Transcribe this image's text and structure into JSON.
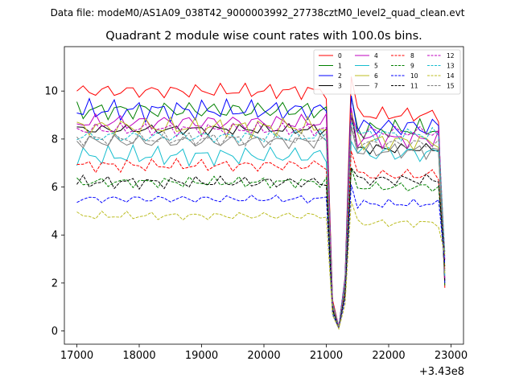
{
  "chart_data": {
    "type": "line",
    "suptitle": "Data file: modeM0/AS1A09_038T42_9000003992_27738cztM0_level2_quad_clean.evt",
    "title": "Quadrant 2 module wise count rates with 100.0s bins.",
    "xlabel": "",
    "ylabel": "",
    "x_offset_label": "+3.43e8",
    "xlim": [
      16800,
      23200
    ],
    "ylim": [
      -0.55,
      11.85
    ],
    "x_ticks": [
      17000,
      18000,
      19000,
      20000,
      21000,
      22000,
      23000
    ],
    "y_ticks": [
      0,
      2,
      4,
      6,
      8,
      10
    ],
    "legend_position": "top-right",
    "x": [
      17000,
      17100,
      17200,
      17300,
      17400,
      17500,
      17600,
      17700,
      17800,
      17900,
      18000,
      18100,
      18200,
      18300,
      18400,
      18500,
      18600,
      18700,
      18800,
      18900,
      19000,
      19100,
      19200,
      19300,
      19400,
      19500,
      19600,
      19700,
      19800,
      19900,
      20000,
      20100,
      20200,
      20300,
      20400,
      20500,
      20600,
      20700,
      20800,
      20900,
      21000,
      21100,
      21200,
      21300,
      21400,
      21500,
      21600,
      21700,
      21800,
      21900,
      22000,
      22100,
      22200,
      22300,
      22400,
      22500,
      22600,
      22700,
      22800,
      22900
    ],
    "dip": [
      1,
      1,
      1,
      1,
      1,
      1,
      1,
      1,
      1,
      1,
      1,
      1,
      1,
      1,
      1,
      1,
      1,
      1,
      1,
      1,
      1,
      1,
      1,
      1,
      1,
      1,
      1,
      1,
      1,
      1,
      1,
      1,
      1,
      1,
      1,
      1,
      1,
      1,
      1,
      1,
      1,
      0.14,
      0.02,
      0.25,
      1.05,
      1,
      1,
      1,
      1,
      1,
      1,
      1,
      1,
      1,
      1,
      1,
      1,
      1,
      1,
      0.22
    ],
    "series": [
      {
        "name": "0",
        "color": "#ff0000",
        "dash": "solid",
        "base": 10.0,
        "amp": 0.35,
        "post": 9.0
      },
      {
        "name": "1",
        "color": "#008000",
        "dash": "solid",
        "base": 9.2,
        "amp": 0.45,
        "post": 8.4
      },
      {
        "name": "2",
        "color": "#0000ff",
        "dash": "solid",
        "base": 9.2,
        "amp": 0.5,
        "post": 8.5
      },
      {
        "name": "3",
        "color": "#000000",
        "dash": "solid",
        "base": 8.4,
        "amp": 0.25,
        "post": 7.6
      },
      {
        "name": "4",
        "color": "#bf00bf",
        "dash": "solid",
        "base": 8.7,
        "amp": 0.4,
        "post": 8.0
      },
      {
        "name": "5",
        "color": "#17becf",
        "dash": "solid",
        "base": 7.3,
        "amp": 0.45,
        "post": 7.4
      },
      {
        "name": "6",
        "color": "#bcbd22",
        "dash": "solid",
        "base": 8.5,
        "amp": 0.45,
        "post": 7.9
      },
      {
        "name": "7",
        "color": "#7f7f7f",
        "dash": "solid",
        "base": 7.9,
        "amp": 0.35,
        "post": 7.5
      },
      {
        "name": "8",
        "color": "#ff0000",
        "dash": "dashed",
        "base": 6.9,
        "amp": 0.3,
        "post": 6.5
      },
      {
        "name": "9",
        "color": "#008000",
        "dash": "dashed",
        "base": 6.2,
        "amp": 0.25,
        "post": 6.0
      },
      {
        "name": "10",
        "color": "#0000ff",
        "dash": "dashed",
        "base": 5.5,
        "amp": 0.2,
        "post": 5.3
      },
      {
        "name": "11",
        "color": "#000000",
        "dash": "dashed",
        "base": 6.2,
        "amp": 0.3,
        "post": 6.3
      },
      {
        "name": "12",
        "color": "#bf00bf",
        "dash": "dashed",
        "base": 8.4,
        "amp": 0.3,
        "post": 8.3
      },
      {
        "name": "13",
        "color": "#17becf",
        "dash": "dashed",
        "base": 8.1,
        "amp": 0.3,
        "post": 8.2
      },
      {
        "name": "14",
        "color": "#bcbd22",
        "dash": "dashed",
        "base": 4.8,
        "amp": 0.2,
        "post": 4.5
      },
      {
        "name": "15",
        "color": "#7f7f7f",
        "dash": "dashed",
        "base": 8.0,
        "amp": 0.3,
        "post": 7.8
      }
    ]
  }
}
